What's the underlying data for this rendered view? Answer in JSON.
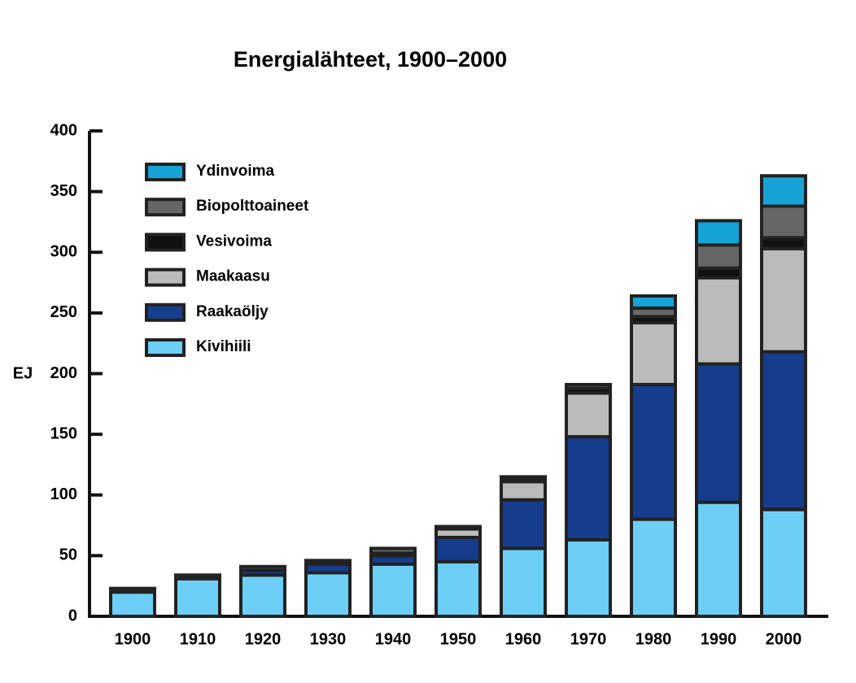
{
  "chart_data": {
    "type": "stacked_bar",
    "title": "Energialähteet, 1900–2000",
    "y_label": "EJ",
    "categories": [
      "1900",
      "1910",
      "1920",
      "1930",
      "1940",
      "1950",
      "1960",
      "1970",
      "1980",
      "1990",
      "2000"
    ],
    "series": [
      {
        "name": "Kivihiili",
        "color": "#6dcff6",
        "values": [
          20,
          31,
          34,
          36,
          43,
          45,
          56,
          63,
          80,
          94,
          88
        ]
      },
      {
        "name": "Raakaöljy",
        "color": "#163c8c",
        "values": [
          1,
          1,
          4,
          7,
          7,
          20,
          40,
          85,
          111,
          114,
          130
        ]
      },
      {
        "name": "Maakaasu",
        "color": "#bbbbbb",
        "values": [
          0,
          0,
          0,
          0,
          1,
          7,
          15,
          36,
          51,
          71,
          85
        ]
      },
      {
        "name": "Vesivoima",
        "color": "#111111",
        "values": [
          0,
          0,
          0,
          1,
          1,
          1,
          2,
          4,
          5,
          8,
          9
        ]
      },
      {
        "name": "Biopolttoaineet",
        "color": "#666666",
        "values": [
          2,
          2,
          3,
          2,
          4,
          1,
          2,
          3,
          7,
          19,
          26
        ]
      },
      {
        "name": "Ydinvoima",
        "color": "#16a3d6",
        "values": [
          0,
          0,
          0,
          0,
          0,
          0,
          0,
          0,
          10,
          20,
          25
        ]
      }
    ],
    "ylim": [
      0,
      400
    ],
    "yticks": [
      0,
      50,
      100,
      150,
      200,
      250,
      300,
      350,
      400
    ],
    "grid": false
  }
}
